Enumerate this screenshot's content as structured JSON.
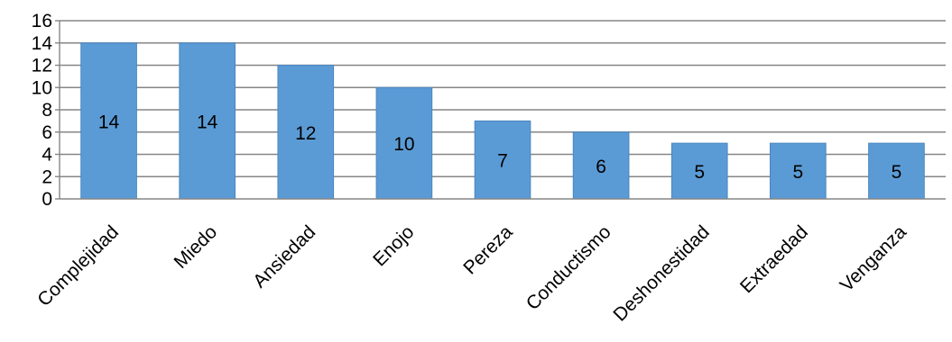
{
  "chart_data": {
    "type": "bar",
    "title": "",
    "xlabel": "",
    "ylabel": "",
    "categories": [
      "Complejidad",
      "Miedo",
      "Ansiedad",
      "Enojo",
      "Pereza",
      "Conductismo",
      "Deshonestidad",
      "Extraedad",
      "Venganza"
    ],
    "values": [
      14,
      14,
      12,
      10,
      7,
      6,
      5,
      5,
      5
    ],
    "ylim": [
      0,
      16
    ],
    "yticks": [
      "0",
      "2",
      "4",
      "6",
      "8",
      "10",
      "12",
      "14",
      "16"
    ],
    "grid": true,
    "legend": "none",
    "colors": {
      "bar": "#5b9bd5",
      "bar_edge": "#4a86bf",
      "grid": "#868686",
      "axis": "#868686"
    }
  }
}
